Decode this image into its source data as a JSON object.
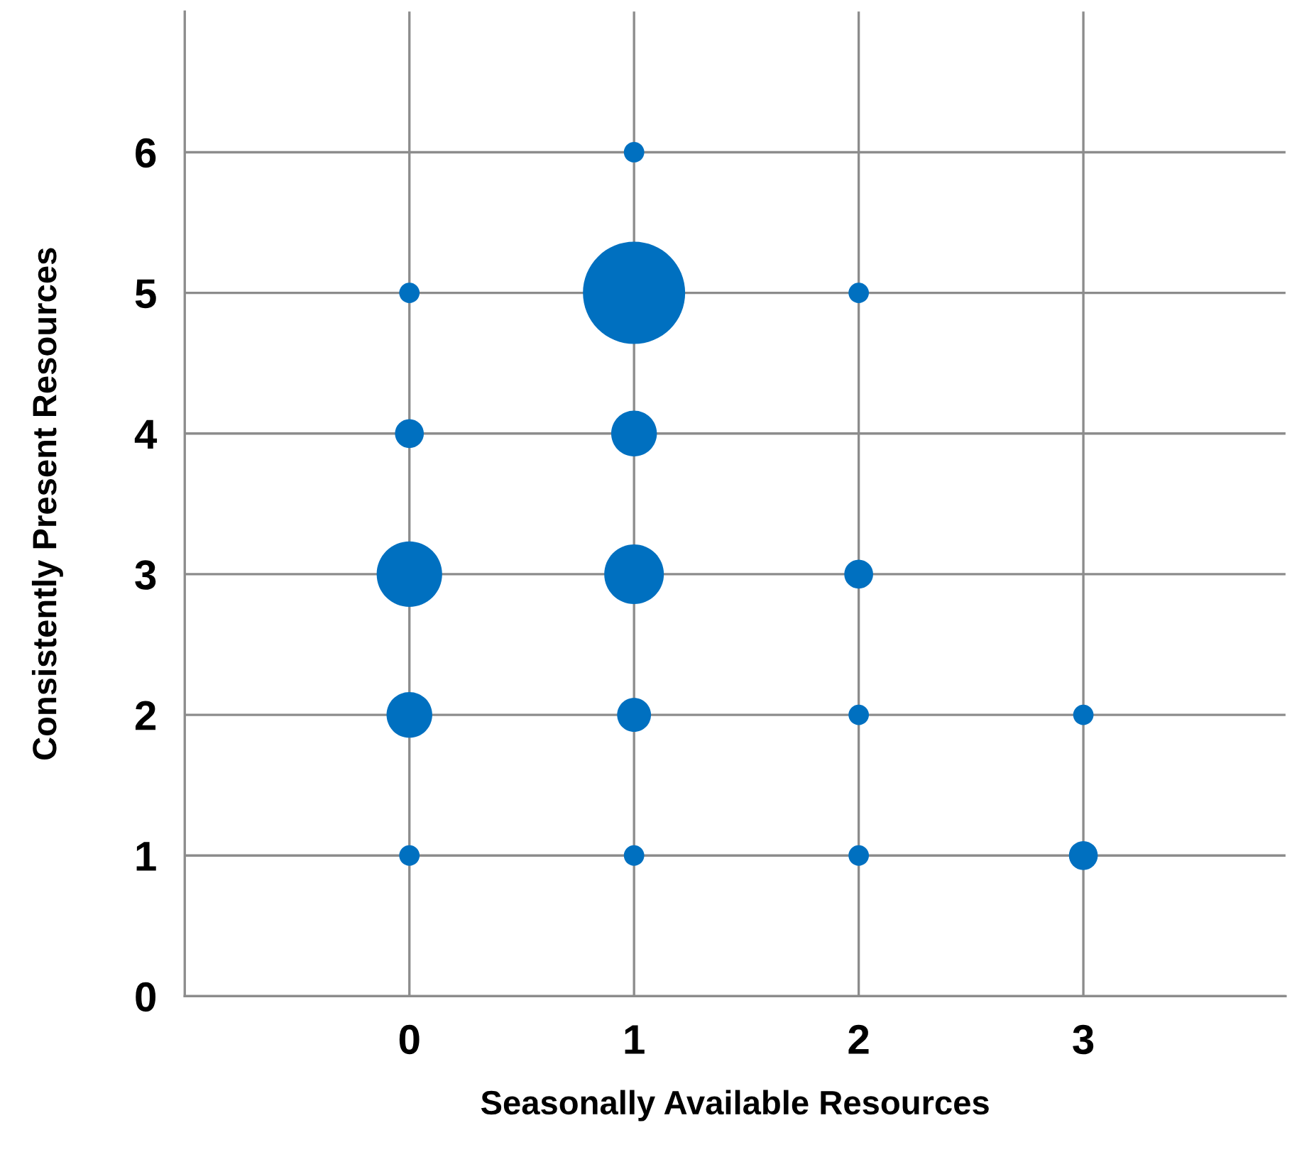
{
  "chart_data": {
    "type": "bubble",
    "xlabel": "Seasonally Available Resources",
    "ylabel": "Consistently Present Resources",
    "x": [
      1,
      0,
      1,
      2,
      0,
      1,
      0,
      1,
      2,
      0,
      1,
      2,
      3,
      0,
      1,
      2,
      3
    ],
    "values": [
      6,
      5,
      5,
      5,
      4,
      4,
      3,
      3,
      3,
      2,
      2,
      2,
      2,
      1,
      1,
      1,
      1
    ],
    "sizes": [
      0.04,
      0.04,
      1,
      0.04,
      0.08,
      0.2,
      0.41,
      0.34,
      0.08,
      0.2,
      0.11,
      0.04,
      0.04,
      0.04,
      0.04,
      0.04,
      0.08
    ],
    "color": "#0070c0",
    "xlim": [
      -1,
      3.9
    ],
    "xticks": [
      0,
      1,
      2,
      3
    ],
    "ylim": [
      0,
      7
    ],
    "yticks": [
      0,
      1,
      2,
      3,
      4,
      5,
      6
    ],
    "grid": true
  }
}
